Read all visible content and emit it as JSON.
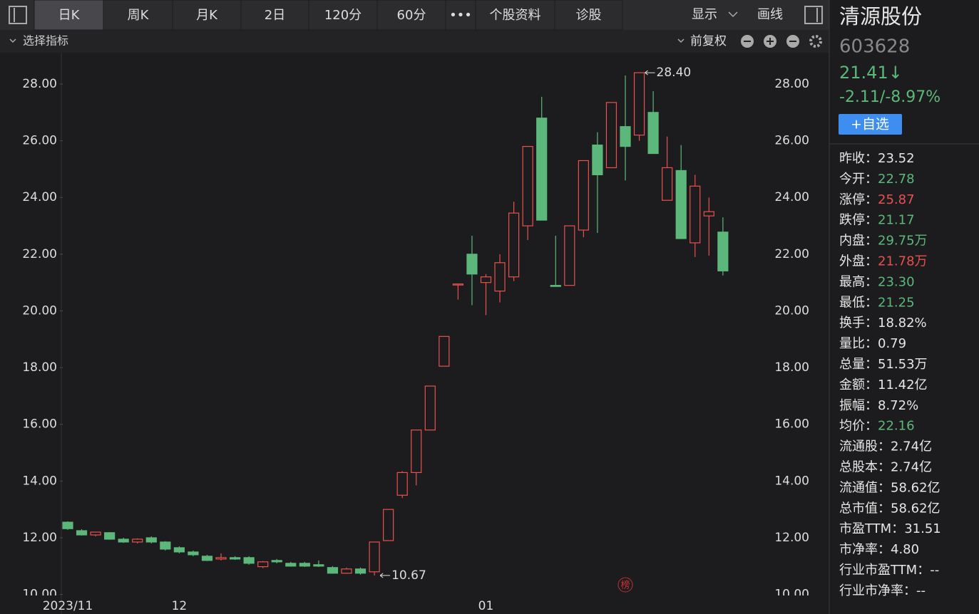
{
  "toolbar": {
    "tabs": [
      "日K",
      "周K",
      "月K",
      "2日",
      "120分",
      "60分",
      "•••",
      "个股资料",
      "诊股"
    ],
    "display": "显示",
    "draw": "画线"
  },
  "indicator_bar": {
    "select": "选择指标",
    "adjust": "前复权"
  },
  "stock": {
    "name": "清源股份",
    "code": "603628",
    "price": "21.41↓",
    "change": "-2.11/-8.97%",
    "button": "+自选"
  },
  "stats": [
    {
      "label": "昨收：",
      "value": "23.52",
      "color": "#e6e6e6"
    },
    {
      "label": "今开：",
      "value": "22.78",
      "color": "#5cb87a"
    },
    {
      "label": "涨停：",
      "value": "25.87",
      "color": "#e8514d"
    },
    {
      "label": "跌停：",
      "value": "21.17",
      "color": "#5cb87a"
    },
    {
      "label": "内盘：",
      "value": "29.75万",
      "color": "#5cb87a"
    },
    {
      "label": "外盘：",
      "value": "21.78万",
      "color": "#e8514d"
    },
    {
      "label": "最高：",
      "value": "23.30",
      "color": "#5cb87a"
    },
    {
      "label": "最低：",
      "value": "21.25",
      "color": "#5cb87a"
    },
    {
      "label": "换手：",
      "value": "18.82%",
      "color": "#e6e6e6"
    },
    {
      "label": "量比：",
      "value": "0.79",
      "color": "#e6e6e6"
    },
    {
      "label": "总量：",
      "value": "51.53万",
      "color": "#e6e6e6"
    },
    {
      "label": "金额：",
      "value": "11.42亿",
      "color": "#e6e6e6"
    },
    {
      "label": "振幅：",
      "value": "8.72%",
      "color": "#e6e6e6"
    },
    {
      "label": "均价：",
      "value": "22.16",
      "color": "#5cb87a"
    },
    {
      "label": "流通股：",
      "value": "2.74亿",
      "color": "#e6e6e6"
    },
    {
      "label": "总股本：",
      "value": "2.74亿",
      "color": "#e6e6e6"
    },
    {
      "label": "流通值：",
      "value": "58.62亿",
      "color": "#e6e6e6"
    },
    {
      "label": "总市值：",
      "value": "58.62亿",
      "color": "#e6e6e6"
    },
    {
      "label": "市盈TTM：",
      "value": "31.51",
      "color": "#e6e6e6"
    },
    {
      "label": "市净率：",
      "value": "4.80",
      "color": "#e6e6e6"
    },
    {
      "label": "行业市盈TTM：",
      "value": "--",
      "color": "#e6e6e6"
    },
    {
      "label": "行业市净率：",
      "value": "--",
      "color": "#e6e6e6"
    }
  ],
  "chart_data": {
    "type": "candlestick",
    "up_color": "#e8514d",
    "down_color": "#5cb87a",
    "x": [
      "2023/11",
      null,
      null,
      null,
      null,
      null,
      null,
      null,
      "12",
      null,
      null,
      null,
      null,
      null,
      null,
      null,
      null,
      null,
      null,
      null,
      null,
      null,
      null,
      null,
      null,
      null,
      null,
      null,
      null,
      null,
      "01",
      null,
      null,
      null,
      null,
      null,
      null,
      null,
      null,
      null,
      null,
      null,
      null,
      null,
      null,
      null,
      null,
      null
    ],
    "open": [
      12.55,
      12.25,
      12.1,
      12.18,
      11.95,
      11.85,
      12.0,
      11.85,
      11.65,
      11.5,
      11.35,
      11.25,
      11.3,
      11.3,
      10.98,
      11.2,
      11.1,
      11.1,
      11.05,
      10.95,
      10.75,
      10.9,
      10.8,
      11.9,
      13.5,
      14.3,
      15.8,
      18.05,
      20.95,
      22.0,
      21.0,
      20.7,
      21.2,
      23.0,
      26.8,
      20.9,
      20.9,
      22.85,
      25.85,
      25.05,
      26.5,
      26.2,
      27.0,
      23.9,
      24.95,
      22.4,
      23.35,
      22.78
    ],
    "high": [
      12.58,
      12.3,
      12.2,
      12.2,
      12.0,
      11.98,
      12.05,
      11.88,
      11.7,
      11.55,
      11.4,
      11.45,
      11.35,
      11.35,
      11.18,
      11.25,
      11.15,
      11.15,
      11.2,
      11.0,
      10.95,
      10.95,
      11.85,
      13.0,
      14.35,
      15.8,
      17.35,
      19.1,
      20.95,
      22.65,
      21.3,
      22.0,
      23.85,
      25.8,
      27.55,
      22.65,
      23.0,
      25.3,
      26.3,
      27.35,
      28.3,
      28.4,
      27.75,
      26.15,
      25.85,
      24.8,
      24.0,
      23.3
    ],
    "low": [
      12.28,
      12.08,
      12.05,
      11.93,
      11.82,
      11.8,
      11.8,
      11.55,
      11.45,
      11.35,
      11.18,
      11.2,
      11.22,
      11.05,
      10.93,
      11.1,
      10.98,
      10.97,
      10.97,
      10.73,
      10.73,
      10.7,
      10.67,
      11.9,
      13.4,
      13.85,
      15.8,
      18.05,
      20.4,
      20.2,
      19.85,
      20.3,
      21.05,
      22.5,
      23.2,
      20.88,
      20.9,
      22.6,
      22.75,
      25.05,
      24.6,
      26.0,
      25.55,
      23.9,
      22.55,
      21.9,
      21.95,
      21.25
    ],
    "close": [
      12.32,
      12.1,
      12.2,
      11.95,
      11.85,
      11.95,
      11.85,
      11.6,
      11.5,
      11.4,
      11.2,
      11.3,
      11.25,
      11.1,
      11.15,
      11.15,
      11.0,
      11.0,
      11.0,
      10.75,
      10.9,
      10.75,
      11.85,
      13.0,
      14.3,
      15.8,
      17.35,
      19.1,
      20.95,
      21.3,
      21.2,
      21.7,
      23.45,
      25.8,
      23.2,
      20.88,
      23.0,
      25.3,
      24.8,
      27.35,
      25.8,
      28.4,
      25.55,
      25.05,
      22.55,
      24.4,
      23.5,
      21.41
    ],
    "max_label": "28.40",
    "min_label": "10.67",
    "stamp": "榜",
    "ylim": [
      10,
      29.1
    ],
    "yticks": [
      {
        "value": 10,
        "label": "10.00"
      },
      {
        "value": 12,
        "label": "12.00"
      },
      {
        "value": 14,
        "label": "14.00"
      },
      {
        "value": 16,
        "label": "16.00"
      },
      {
        "value": 18,
        "label": "18.00"
      },
      {
        "value": 20,
        "label": "20.00"
      },
      {
        "value": 22,
        "label": "22.00"
      },
      {
        "value": 24,
        "label": "24.00"
      },
      {
        "value": 26,
        "label": "26.00"
      },
      {
        "value": 28,
        "label": "28.00"
      }
    ]
  }
}
